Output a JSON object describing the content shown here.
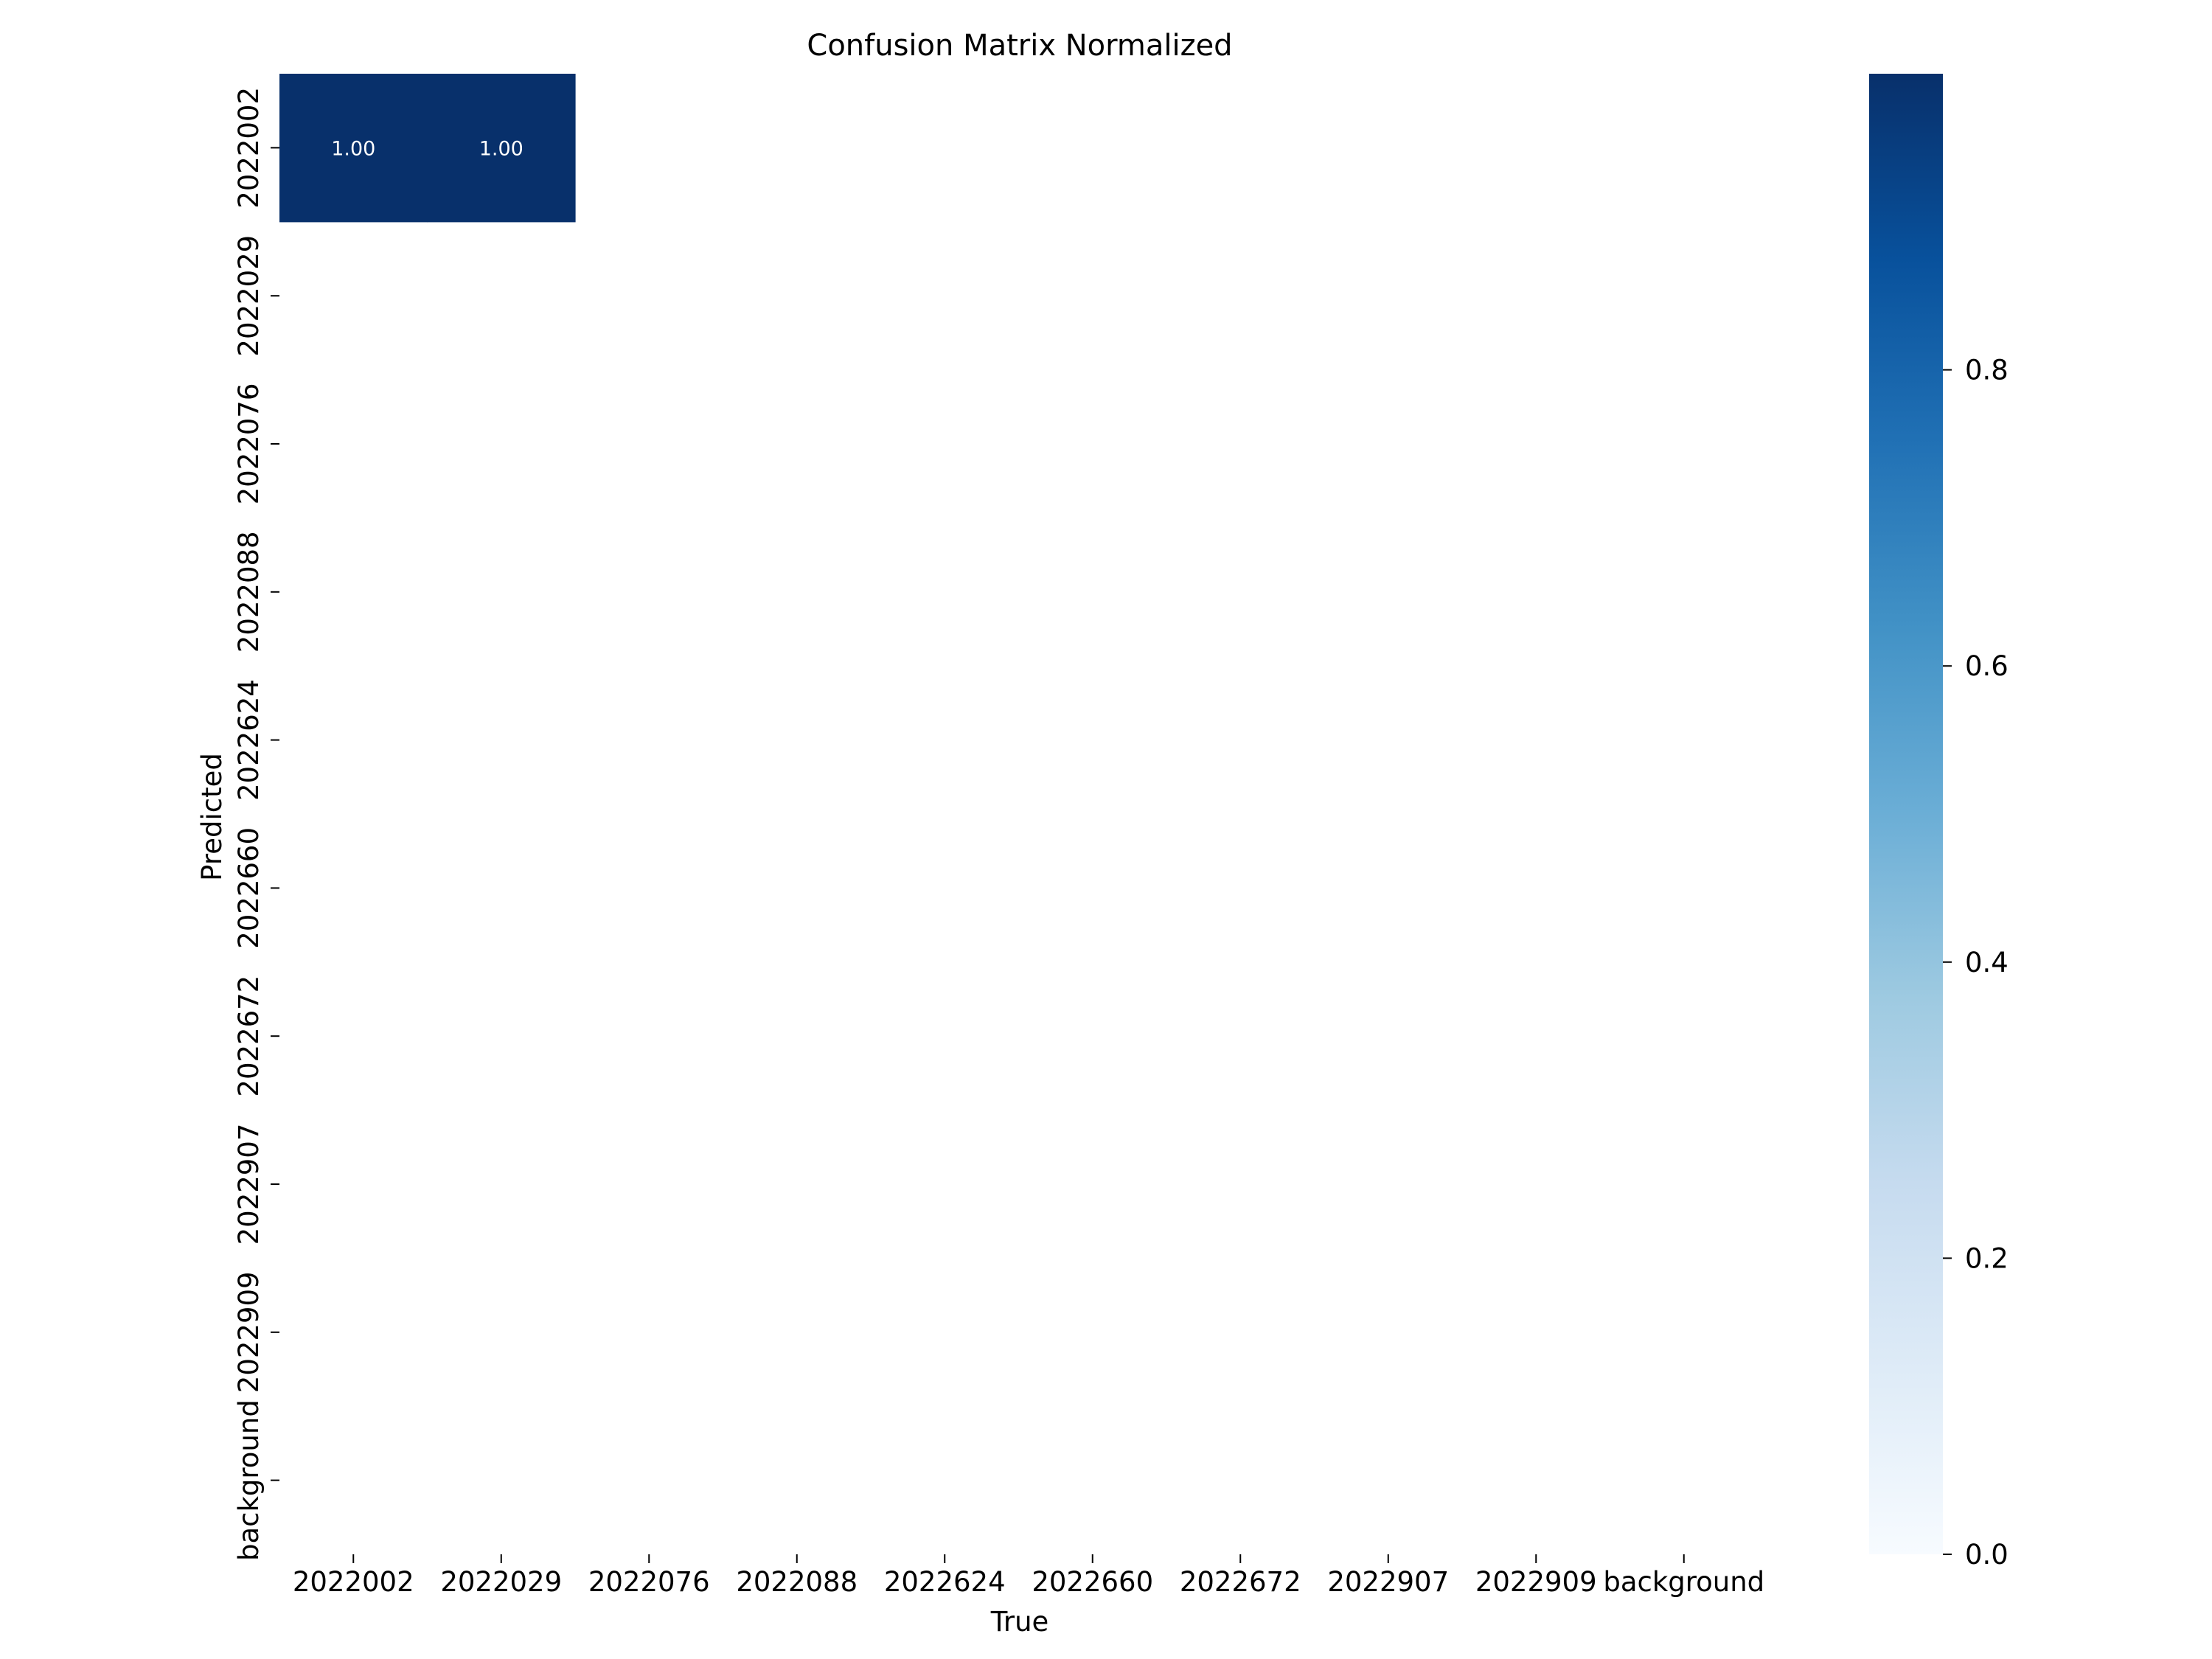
{
  "chart_data": {
    "type": "heatmap",
    "title": "Confusion Matrix Normalized",
    "xlabel": "True",
    "ylabel": "Predicted",
    "x_categories": [
      "2022002",
      "2022029",
      "2022076",
      "2022088",
      "2022624",
      "2022660",
      "2022672",
      "2022907",
      "2022909",
      "background"
    ],
    "y_categories": [
      "2022002",
      "2022029",
      "2022076",
      "2022088",
      "2022624",
      "2022660",
      "2022672",
      "2022907",
      "2022909",
      "background"
    ],
    "cells": [
      {
        "row": 0,
        "col": 0,
        "value": 1.0,
        "label": "1.00"
      },
      {
        "row": 0,
        "col": 1,
        "value": 1.0,
        "label": "1.00"
      }
    ],
    "colormap": "Blues",
    "color_low": "#f7fbff",
    "color_high": "#08306b",
    "colorbar": {
      "range": [
        0,
        1
      ],
      "ticks": [
        0.0,
        0.2,
        0.4,
        0.6,
        0.8
      ],
      "tick_labels": [
        "0.0",
        "0.2",
        "0.4",
        "0.6",
        "0.8"
      ]
    },
    "grid": false
  }
}
